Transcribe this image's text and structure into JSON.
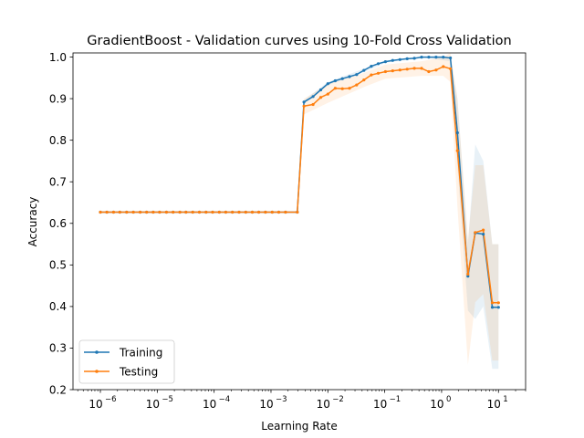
{
  "chart_data": {
    "type": "line",
    "title": "GradientBoost - Validation curves using 10-Fold Cross Validation",
    "xlabel": "Learning Rate",
    "ylabel": "Accuracy",
    "xscale": "log",
    "xlim": [
      3.3e-07,
      30
    ],
    "ylim": [
      0.2,
      1.01
    ],
    "xticks": [
      {
        "value": 1e-06,
        "base": "10",
        "exp": "−6"
      },
      {
        "value": 1e-05,
        "base": "10",
        "exp": "−5"
      },
      {
        "value": 0.0001,
        "base": "10",
        "exp": "−4"
      },
      {
        "value": 0.001,
        "base": "10",
        "exp": "−3"
      },
      {
        "value": 0.01,
        "base": "10",
        "exp": "−2"
      },
      {
        "value": 0.1,
        "base": "10",
        "exp": "−1"
      },
      {
        "value": 1,
        "base": "10",
        "exp": "0"
      },
      {
        "value": 10,
        "base": "10",
        "exp": "1"
      }
    ],
    "yticks": [
      "0.2",
      "0.3",
      "0.4",
      "0.5",
      "0.6",
      "0.7",
      "0.8",
      "0.9",
      "1.0"
    ],
    "legend_position": "lower-left",
    "grid": false,
    "series": [
      {
        "name": "Training",
        "color": "#1f77b4",
        "points": [
          [
            1e-06,
            0.627
          ],
          [
            1.3e-06,
            0.627
          ],
          [
            1.7e-06,
            0.627
          ],
          [
            2.2e-06,
            0.627
          ],
          [
            2.9e-06,
            0.627
          ],
          [
            3.8e-06,
            0.627
          ],
          [
            5e-06,
            0.627
          ],
          [
            6.5e-06,
            0.627
          ],
          [
            8.5e-06,
            0.627
          ],
          [
            1.1e-05,
            0.627
          ],
          [
            1.45e-05,
            0.627
          ],
          [
            1.9e-05,
            0.627
          ],
          [
            2.5e-05,
            0.627
          ],
          [
            3.2e-05,
            0.627
          ],
          [
            4.2e-05,
            0.627
          ],
          [
            5.5e-05,
            0.627
          ],
          [
            7.2e-05,
            0.627
          ],
          [
            9.4e-05,
            0.627
          ],
          [
            0.000123,
            0.627
          ],
          [
            0.00016,
            0.627
          ],
          [
            0.00021,
            0.627
          ],
          [
            0.000275,
            0.627
          ],
          [
            0.00036,
            0.627
          ],
          [
            0.00047,
            0.627
          ],
          [
            0.00061,
            0.627
          ],
          [
            0.0008,
            0.627
          ],
          [
            0.00105,
            0.627
          ],
          [
            0.00137,
            0.627
          ],
          [
            0.0018,
            0.627
          ],
          [
            0.0029,
            0.627
          ],
          [
            0.0038,
            0.892
          ],
          [
            0.0055,
            0.905
          ],
          [
            0.0075,
            0.921
          ],
          [
            0.01,
            0.936
          ],
          [
            0.0135,
            0.943
          ],
          [
            0.018,
            0.948
          ],
          [
            0.024,
            0.953
          ],
          [
            0.032,
            0.958
          ],
          [
            0.043,
            0.968
          ],
          [
            0.058,
            0.978
          ],
          [
            0.077,
            0.984
          ],
          [
            0.103,
            0.989
          ],
          [
            0.138,
            0.992
          ],
          [
            0.185,
            0.994
          ],
          [
            0.248,
            0.996
          ],
          [
            0.332,
            0.997
          ],
          [
            0.445,
            1.0
          ],
          [
            0.596,
            1.0
          ],
          [
            0.8,
            1.0
          ],
          [
            1.07,
            1.0
          ],
          [
            1.43,
            0.998
          ],
          [
            1.9,
            0.818
          ],
          [
            2.9,
            0.473
          ],
          [
            3.9,
            0.577
          ],
          [
            5.4,
            0.574
          ],
          [
            7.8,
            0.398
          ],
          [
            10.0,
            0.398
          ]
        ],
        "upper": [
          [
            1e-06,
            0.628
          ],
          [
            0.0029,
            0.628
          ],
          [
            0.0038,
            0.896
          ],
          [
            0.01,
            0.94
          ],
          [
            0.043,
            0.972
          ],
          [
            0.103,
            0.992
          ],
          [
            0.445,
            1.0
          ],
          [
            1.43,
            1.0
          ],
          [
            1.9,
            0.9
          ],
          [
            2.9,
            0.55
          ],
          [
            3.9,
            0.79
          ],
          [
            5.4,
            0.75
          ],
          [
            7.8,
            0.55
          ],
          [
            10.0,
            0.55
          ]
        ],
        "lower": [
          [
            1e-06,
            0.626
          ],
          [
            0.0029,
            0.626
          ],
          [
            0.0038,
            0.888
          ],
          [
            0.01,
            0.932
          ],
          [
            0.043,
            0.964
          ],
          [
            0.103,
            0.986
          ],
          [
            0.445,
            1.0
          ],
          [
            1.43,
            0.99
          ],
          [
            1.9,
            0.74
          ],
          [
            2.9,
            0.39
          ],
          [
            3.9,
            0.37
          ],
          [
            5.4,
            0.4
          ],
          [
            7.8,
            0.25
          ],
          [
            10.0,
            0.25
          ]
        ]
      },
      {
        "name": "Testing",
        "color": "#ff7f0e",
        "points": [
          [
            1e-06,
            0.627
          ],
          [
            1.3e-06,
            0.627
          ],
          [
            1.7e-06,
            0.627
          ],
          [
            2.2e-06,
            0.627
          ],
          [
            2.9e-06,
            0.627
          ],
          [
            3.8e-06,
            0.627
          ],
          [
            5e-06,
            0.627
          ],
          [
            6.5e-06,
            0.627
          ],
          [
            8.5e-06,
            0.627
          ],
          [
            1.1e-05,
            0.627
          ],
          [
            1.45e-05,
            0.627
          ],
          [
            1.9e-05,
            0.627
          ],
          [
            2.5e-05,
            0.627
          ],
          [
            3.2e-05,
            0.627
          ],
          [
            4.2e-05,
            0.627
          ],
          [
            5.5e-05,
            0.627
          ],
          [
            7.2e-05,
            0.627
          ],
          [
            9.4e-05,
            0.627
          ],
          [
            0.000123,
            0.627
          ],
          [
            0.00016,
            0.627
          ],
          [
            0.00021,
            0.627
          ],
          [
            0.000275,
            0.627
          ],
          [
            0.00036,
            0.627
          ],
          [
            0.00047,
            0.627
          ],
          [
            0.00061,
            0.627
          ],
          [
            0.0008,
            0.627
          ],
          [
            0.00105,
            0.627
          ],
          [
            0.00137,
            0.627
          ],
          [
            0.0018,
            0.627
          ],
          [
            0.0029,
            0.627
          ],
          [
            0.0038,
            0.882
          ],
          [
            0.0055,
            0.886
          ],
          [
            0.0075,
            0.903
          ],
          [
            0.01,
            0.911
          ],
          [
            0.0135,
            0.925
          ],
          [
            0.018,
            0.924
          ],
          [
            0.024,
            0.925
          ],
          [
            0.032,
            0.933
          ],
          [
            0.043,
            0.945
          ],
          [
            0.058,
            0.957
          ],
          [
            0.077,
            0.961
          ],
          [
            0.103,
            0.965
          ],
          [
            0.138,
            0.967
          ],
          [
            0.185,
            0.969
          ],
          [
            0.248,
            0.971
          ],
          [
            0.332,
            0.973
          ],
          [
            0.445,
            0.973
          ],
          [
            0.596,
            0.965
          ],
          [
            0.8,
            0.969
          ],
          [
            1.07,
            0.977
          ],
          [
            1.43,
            0.972
          ],
          [
            1.9,
            0.775
          ],
          [
            2.9,
            0.478
          ],
          [
            3.9,
            0.578
          ],
          [
            5.4,
            0.584
          ],
          [
            7.8,
            0.409
          ],
          [
            10.0,
            0.409
          ]
        ],
        "upper": [
          [
            1e-06,
            0.629
          ],
          [
            0.0029,
            0.629
          ],
          [
            0.0038,
            0.9
          ],
          [
            0.01,
            0.935
          ],
          [
            0.043,
            0.962
          ],
          [
            0.103,
            0.982
          ],
          [
            0.445,
            0.99
          ],
          [
            1.07,
            1.0
          ],
          [
            1.43,
            1.01
          ],
          [
            1.9,
            0.9
          ],
          [
            2.9,
            0.56
          ],
          [
            3.9,
            0.74
          ],
          [
            5.4,
            0.74
          ],
          [
            7.8,
            0.55
          ],
          [
            10.0,
            0.55
          ]
        ],
        "lower": [
          [
            1e-06,
            0.625
          ],
          [
            0.0029,
            0.625
          ],
          [
            0.0038,
            0.862
          ],
          [
            0.01,
            0.89
          ],
          [
            0.043,
            0.928
          ],
          [
            0.103,
            0.948
          ],
          [
            0.445,
            0.955
          ],
          [
            1.07,
            0.955
          ],
          [
            1.43,
            0.94
          ],
          [
            1.9,
            0.64
          ],
          [
            2.9,
            0.26
          ],
          [
            3.9,
            0.41
          ],
          [
            5.4,
            0.43
          ],
          [
            7.8,
            0.27
          ],
          [
            10.0,
            0.27
          ]
        ]
      }
    ]
  }
}
